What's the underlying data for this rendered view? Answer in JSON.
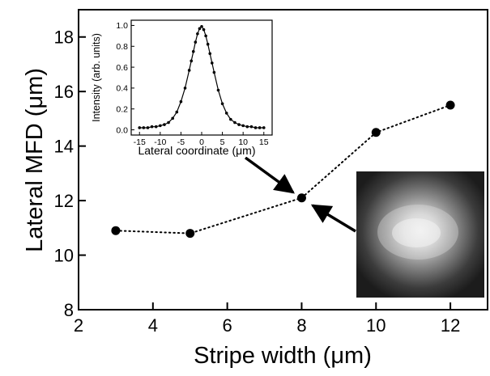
{
  "chart_data": [
    {
      "type": "scatter",
      "role": "main",
      "xlabel": "Stripe width (μm)",
      "ylabel": "Lateral MFD (μm)",
      "xlim": [
        2,
        13
      ],
      "ylim": [
        8,
        19
      ],
      "xticks": [
        2,
        4,
        6,
        8,
        10,
        12
      ],
      "yticks": [
        8,
        10,
        12,
        14,
        16,
        18
      ],
      "grid": false,
      "line_style": "dotted",
      "marker": "filled-circle",
      "series": [
        {
          "x": [
            3,
            5,
            8,
            10,
            12
          ],
          "y": [
            10.9,
            10.8,
            12.1,
            14.5,
            15.5
          ]
        }
      ]
    },
    {
      "type": "line",
      "role": "inset",
      "xlabel": "Lateral coordinate (μm)",
      "ylabel": "Intensity (arb. units)",
      "xlim": [
        -17,
        17
      ],
      "ylim": [
        -0.05,
        1.05
      ],
      "xticks": [
        -15,
        -10,
        -5,
        0,
        5,
        10,
        15
      ],
      "yticks": [
        0.0,
        0.2,
        0.4,
        0.6,
        0.8,
        1.0
      ],
      "marker": "small-filled-circle",
      "series": [
        {
          "x": [
            -15,
            -14,
            -13,
            -12,
            -11,
            -10,
            -9,
            -8,
            -7,
            -6,
            -5,
            -4,
            -3,
            -2.5,
            -2,
            -1.5,
            -1,
            -0.5,
            0,
            0.5,
            1,
            1.5,
            2,
            2.5,
            3,
            4,
            5,
            6,
            7,
            8,
            9,
            10,
            11,
            12,
            13,
            14,
            15
          ],
          "y": [
            0.02,
            0.02,
            0.02,
            0.03,
            0.03,
            0.04,
            0.05,
            0.07,
            0.11,
            0.17,
            0.27,
            0.4,
            0.57,
            0.66,
            0.75,
            0.84,
            0.92,
            0.97,
            0.99,
            0.96,
            0.9,
            0.82,
            0.73,
            0.64,
            0.55,
            0.38,
            0.25,
            0.16,
            0.1,
            0.07,
            0.05,
            0.04,
            0.03,
            0.03,
            0.02,
            0.02,
            0.02
          ]
        }
      ]
    }
  ],
  "mode_image": {
    "description_icon": "near-field-mode-intensity-image"
  }
}
